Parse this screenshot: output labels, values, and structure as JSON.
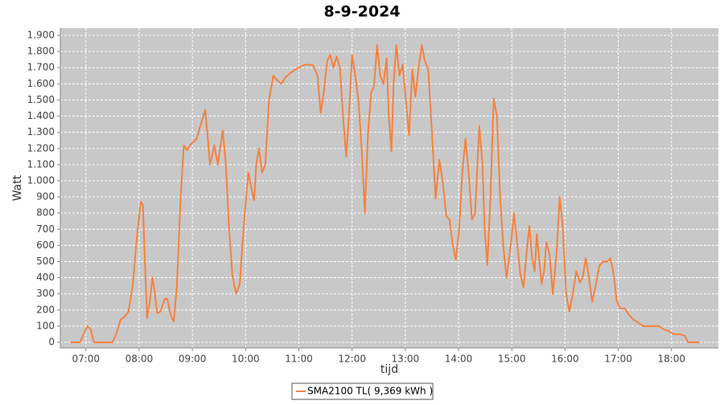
{
  "chart_data": {
    "type": "line",
    "title": "8-9-2024",
    "x_label": "tijd",
    "y_label": "Watt",
    "legend": "bottom",
    "grid": true,
    "xlim": [
      6.52,
      18.88
    ],
    "xticks": [
      {
        "value": 7,
        "label": "07:00"
      },
      {
        "value": 8,
        "label": "08:00"
      },
      {
        "value": 9,
        "label": "09:00"
      },
      {
        "value": 10,
        "label": "10:00"
      },
      {
        "value": 11,
        "label": "11:00"
      },
      {
        "value": 12,
        "label": "12:00"
      },
      {
        "value": 13,
        "label": "13:00"
      },
      {
        "value": 14,
        "label": "14:00"
      },
      {
        "value": 15,
        "label": "15:00"
      },
      {
        "value": 16,
        "label": "16:00"
      },
      {
        "value": 17,
        "label": "17:00"
      },
      {
        "value": 18,
        "label": "18:00"
      }
    ],
    "ylim": [
      -35,
      1945
    ],
    "yticks": [
      0,
      100,
      200,
      300,
      400,
      500,
      600,
      700,
      800,
      900,
      {
        "value": 1000,
        "label": "1.000"
      },
      {
        "value": 1100,
        "label": "1.100"
      },
      {
        "value": 1200,
        "label": "1.200"
      },
      {
        "value": 1300,
        "label": "1.300"
      },
      {
        "value": 1400,
        "label": "1.400"
      },
      {
        "value": 1500,
        "label": "1.500"
      },
      {
        "value": 1600,
        "label": "1.600"
      },
      {
        "value": 1700,
        "label": "1.700"
      },
      {
        "value": 1800,
        "label": "1.800"
      },
      {
        "value": 1900,
        "label": "1.900"
      }
    ],
    "x": [
      6.71,
      6.82,
      6.89,
      6.97,
      7.03,
      7.09,
      7.15,
      7.23,
      7.5,
      7.57,
      7.65,
      7.73,
      7.8,
      7.88,
      7.95,
      8.03,
      8.07,
      8.12,
      8.15,
      8.2,
      8.25,
      8.29,
      8.34,
      8.4,
      8.48,
      8.53,
      8.59,
      8.65,
      8.71,
      8.78,
      8.84,
      8.9,
      8.98,
      9.08,
      9.16,
      9.24,
      9.28,
      9.33,
      9.37,
      9.41,
      9.48,
      9.52,
      9.57,
      9.63,
      9.69,
      9.75,
      9.82,
      9.89,
      9.96,
      10.05,
      10.11,
      10.16,
      10.2,
      10.25,
      10.31,
      10.37,
      10.44,
      10.52,
      10.6,
      10.67,
      10.75,
      10.85,
      10.94,
      11.05,
      11.14,
      11.27,
      11.35,
      11.41,
      11.47,
      11.53,
      11.59,
      11.65,
      11.71,
      11.77,
      11.83,
      11.89,
      11.94,
      12.0,
      12.06,
      12.12,
      12.18,
      12.24,
      12.3,
      12.36,
      12.41,
      12.47,
      12.53,
      12.59,
      12.65,
      12.69,
      12.74,
      12.78,
      12.83,
      12.89,
      12.95,
      13.01,
      13.07,
      13.13,
      13.19,
      13.25,
      13.31,
      13.36,
      13.43,
      13.5,
      13.57,
      13.64,
      13.7,
      13.77,
      13.83,
      13.89,
      13.95,
      14.01,
      14.07,
      14.13,
      14.19,
      14.25,
      14.31,
      14.39,
      14.45,
      14.49,
      14.54,
      14.6,
      14.66,
      14.72,
      14.78,
      14.84,
      14.9,
      14.98,
      15.04,
      15.1,
      15.16,
      15.22,
      15.28,
      15.33,
      15.38,
      15.43,
      15.47,
      15.52,
      15.56,
      15.61,
      15.65,
      15.71,
      15.77,
      15.84,
      15.9,
      15.96,
      16.02,
      16.08,
      16.14,
      16.21,
      16.28,
      16.33,
      16.39,
      16.45,
      16.51,
      16.58,
      16.64,
      16.71,
      16.79,
      16.85,
      16.91,
      16.97,
      17.03,
      17.12,
      17.2,
      17.29,
      17.38,
      17.47,
      17.77,
      17.86,
      17.95,
      18.04,
      18.16,
      18.25,
      18.31,
      18.52
    ],
    "series": [
      {
        "name": "SMA2100 TL( 9,369 kWh )",
        "color": "#f5813f",
        "values": [
          0,
          0,
          0,
          60,
          100,
          80,
          0,
          0,
          0,
          50,
          140,
          160,
          190,
          350,
          620,
          870,
          850,
          400,
          150,
          250,
          400,
          320,
          180,
          190,
          270,
          270,
          170,
          130,
          350,
          900,
          1220,
          1190,
          1230,
          1260,
          1350,
          1440,
          1300,
          1100,
          1150,
          1220,
          1100,
          1200,
          1310,
          1100,
          700,
          420,
          300,
          360,
          700,
          1050,
          950,
          880,
          1100,
          1200,
          1050,
          1100,
          1500,
          1650,
          1620,
          1600,
          1640,
          1670,
          1690,
          1710,
          1720,
          1715,
          1650,
          1420,
          1550,
          1740,
          1780,
          1700,
          1770,
          1700,
          1400,
          1150,
          1400,
          1780,
          1650,
          1500,
          1200,
          800,
          1300,
          1550,
          1580,
          1840,
          1650,
          1600,
          1760,
          1400,
          1180,
          1600,
          1840,
          1650,
          1720,
          1500,
          1280,
          1690,
          1520,
          1700,
          1840,
          1750,
          1690,
          1300,
          890,
          1130,
          1000,
          780,
          760,
          600,
          510,
          700,
          1050,
          1260,
          1050,
          760,
          800,
          1340,
          1100,
          700,
          480,
          900,
          1510,
          1400,
          900,
          600,
          400,
          600,
          800,
          620,
          420,
          340,
          560,
          720,
          520,
          440,
          670,
          500,
          360,
          450,
          620,
          540,
          300,
          550,
          900,
          700,
          300,
          190,
          290,
          440,
          370,
          400,
          520,
          400,
          250,
          360,
          470,
          500,
          500,
          520,
          430,
          260,
          210,
          210,
          170,
          140,
          120,
          100,
          100,
          80,
          70,
          50,
          50,
          40,
          0,
          0
        ]
      }
    ]
  }
}
